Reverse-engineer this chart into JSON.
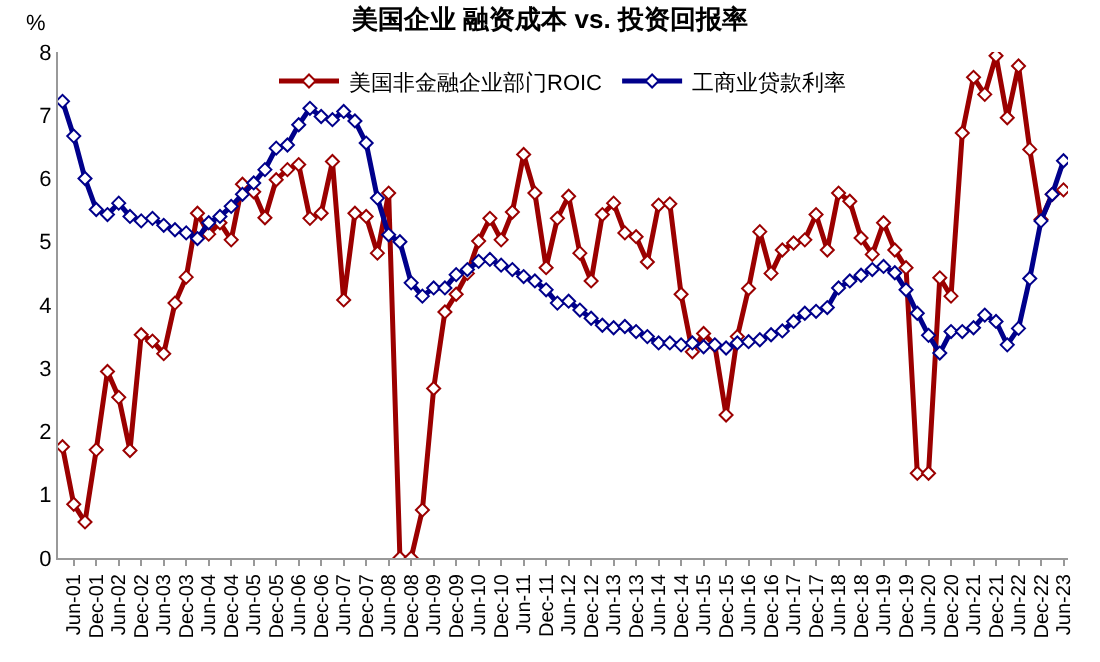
{
  "chart_data": {
    "type": "line",
    "title": "美国企业 融资成本 vs. 投资回报率",
    "ylabel": "%",
    "categories": [
      null,
      "Jun-01",
      null,
      "Dec-01",
      null,
      "Jun-02",
      null,
      "Dec-02",
      null,
      "Jun-03",
      null,
      "Dec-03",
      null,
      "Jun-04",
      null,
      "Dec-04",
      null,
      "Jun-05",
      null,
      "Dec-05",
      null,
      "Jun-06",
      null,
      "Dec-06",
      null,
      "Jun-07",
      null,
      "Dec-07",
      null,
      "Jun-08",
      null,
      "Dec-08",
      null,
      "Jun-09",
      null,
      "Dec-09",
      null,
      "Jun-10",
      null,
      "Dec-10",
      null,
      "Jun-11",
      null,
      "Dec-11",
      null,
      "Jun-12",
      null,
      "Dec-12",
      null,
      "Jun-13",
      null,
      "Dec-13",
      null,
      "Jun-14",
      null,
      "Dec-14",
      null,
      "Jun-15",
      null,
      "Dec-15",
      null,
      "Jun-16",
      null,
      "Dec-16",
      null,
      "Jun-17",
      null,
      "Dec-17",
      null,
      "Jun-18",
      null,
      "Dec-18",
      null,
      "Jun-19",
      null,
      "Dec-19",
      null,
      "Jun-20",
      null,
      "Dec-20",
      null,
      "Jun-21",
      null,
      "Dec-21",
      null,
      "Jun-22",
      null,
      "Dec-22",
      null,
      "Jun-23"
    ],
    "series": [
      {
        "name": "美国非金融企业部门ROIC",
        "color": "#9b0000",
        "values": [
          1.76,
          0.85,
          0.57,
          1.71,
          2.95,
          2.54,
          1.7,
          3.53,
          3.43,
          3.23,
          4.03,
          4.44,
          5.45,
          5.12,
          5.3,
          5.03,
          5.91,
          5.79,
          5.38,
          5.98,
          6.14,
          6.22,
          5.37,
          5.45,
          6.27,
          4.08,
          5.45,
          5.4,
          4.82,
          5.77,
          0,
          0,
          0.76,
          2.68,
          3.89,
          4.17,
          4.5,
          5.01,
          5.37,
          5.03,
          5.47,
          6.38,
          5.77,
          4.59,
          5.37,
          5.72,
          4.82,
          4.38,
          5.43,
          5.61,
          5.14,
          5.08,
          4.68,
          5.58,
          5.6,
          4.17,
          3.26,
          3.55,
          3.36,
          2.26,
          3.5,
          4.26,
          5.16,
          4.5,
          4.87,
          4.98,
          5.03,
          5.43,
          4.87,
          5.77,
          5.64,
          5.06,
          4.8,
          5.3,
          4.87,
          4.59,
          1.34,
          1.34,
          4.43,
          4.14,
          6.72,
          7.6,
          7.33,
          7.94,
          6.96,
          7.78,
          6.46,
          5.35,
          5.75,
          5.82
        ]
      },
      {
        "name": "工商业贷款利率",
        "color": "#00008b",
        "values": [
          7.22,
          6.67,
          6.0,
          5.51,
          5.43,
          5.61,
          5.4,
          5.33,
          5.37,
          5.26,
          5.19,
          5.14,
          5.05,
          5.3,
          5.4,
          5.56,
          5.75,
          5.93,
          6.14,
          6.48,
          6.53,
          6.85,
          7.11,
          6.98,
          6.93,
          7.06,
          6.91,
          6.56,
          5.69,
          5.11,
          5.0,
          4.35,
          4.14,
          4.27,
          4.27,
          4.48,
          4.56,
          4.69,
          4.72,
          4.63,
          4.56,
          4.45,
          4.38,
          4.24,
          4.03,
          4.06,
          3.92,
          3.79,
          3.68,
          3.64,
          3.66,
          3.58,
          3.5,
          3.4,
          3.4,
          3.37,
          3.4,
          3.34,
          3.37,
          3.32,
          3.4,
          3.42,
          3.45,
          3.53,
          3.59,
          3.74,
          3.87,
          3.9,
          3.96,
          4.27,
          4.38,
          4.47,
          4.56,
          4.61,
          4.51,
          4.24,
          3.87,
          3.52,
          3.24,
          3.58,
          3.58,
          3.64,
          3.84,
          3.74,
          3.37,
          3.63,
          4.42,
          5.33,
          5.75,
          6.28
        ]
      }
    ],
    "ylim": [
      0,
      8
    ],
    "yticks": [
      0,
      1,
      2,
      3,
      4,
      5,
      6,
      7,
      8
    ],
    "legend": "top",
    "marker": "diamond"
  }
}
